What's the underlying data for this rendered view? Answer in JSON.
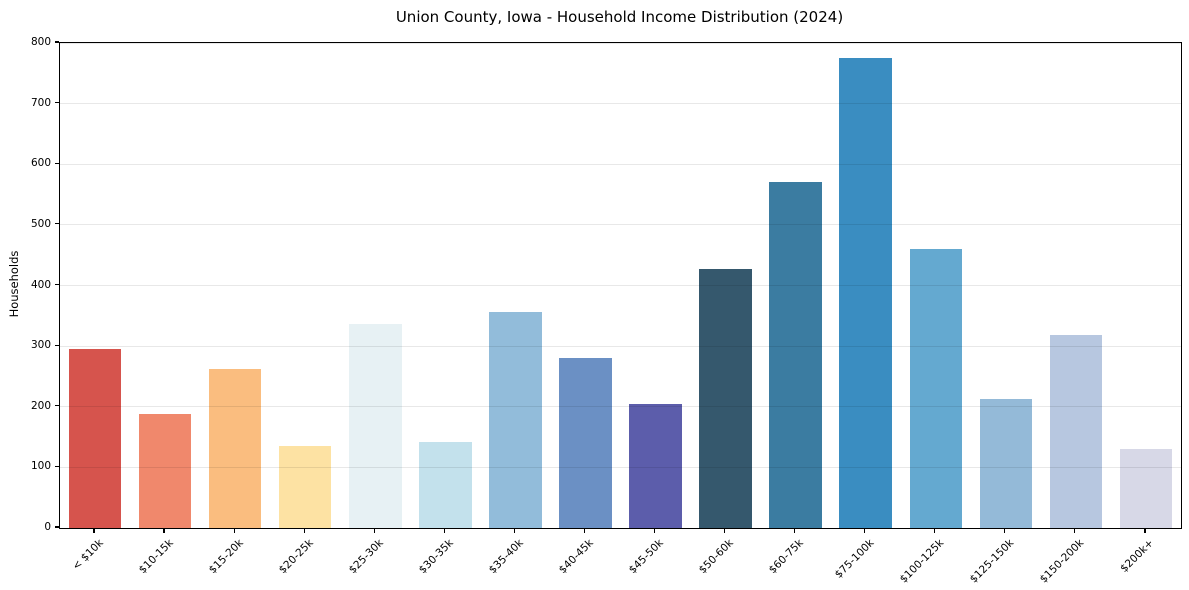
{
  "chart_data": {
    "type": "bar",
    "title": "Union County, Iowa - Household Income Distribution (2024)",
    "xlabel": "",
    "ylabel": "Households",
    "categories": [
      "< $10k",
      "$10-15k",
      "$15-20k",
      "$20-25k",
      "$25-30k",
      "$30-35k",
      "$35-40k",
      "$40-45k",
      "$45-50k",
      "$50-60k",
      "$60-75k",
      "$75-100k",
      "$100-125k",
      "$125-150k",
      "$150-200k",
      "$200k+"
    ],
    "values": [
      296,
      188,
      262,
      135,
      337,
      142,
      356,
      281,
      205,
      428,
      570,
      775,
      460,
      212,
      318,
      130
    ],
    "bar_colors": [
      "#d6544d",
      "#f0886c",
      "#fabd7f",
      "#fde2a3",
      "#e7f1f4",
      "#c3e1ec",
      "#92bcda",
      "#6b90c4",
      "#5c5dab",
      "#35586d",
      "#3b7ca1",
      "#3a8dc1",
      "#64a9d0",
      "#94bad8",
      "#b7c7e0",
      "#d7d8e7"
    ],
    "ylim": [
      0,
      800
    ],
    "yticks": [
      0,
      100,
      200,
      300,
      400,
      500,
      600,
      700,
      800
    ],
    "grid": "horizontal",
    "grid_over_bars": true,
    "legend": null,
    "bar_width_fraction": 0.75,
    "x_tick_rotation_deg": 45
  },
  "colors": {
    "background": "#ffffff",
    "spine": "#000000",
    "gridline": "#e8e8e8",
    "text": "#000000"
  }
}
